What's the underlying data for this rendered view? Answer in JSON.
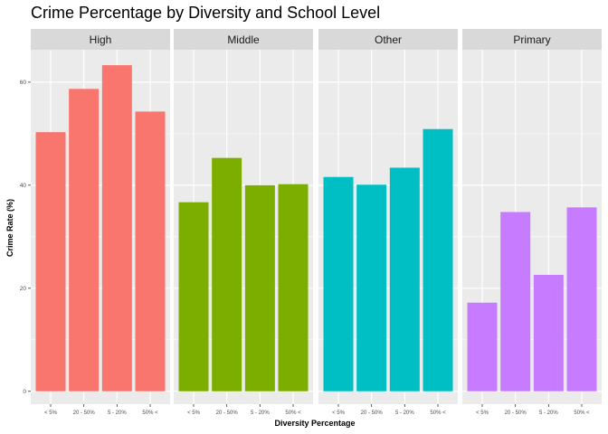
{
  "chart_data": {
    "type": "bar",
    "title": "Crime Percentage by Diversity and School Level",
    "xlabel": "Diversity Percentage",
    "ylabel": "Crime Rate (%)",
    "categories": [
      "< 5%",
      "20 - 50%",
      "5 - 20%",
      "50% <"
    ],
    "y_ticks": [
      0,
      20,
      40,
      60
    ],
    "ylim": [
      -2.5,
      66.3
    ],
    "grid": true,
    "facets": [
      {
        "name": "High",
        "color": "#F8766D",
        "values": [
          50.3,
          58.7,
          63.3,
          54.3
        ]
      },
      {
        "name": "Middle",
        "color": "#7CAE00",
        "values": [
          36.7,
          45.3,
          40.0,
          40.2
        ]
      },
      {
        "name": "Other",
        "color": "#00BFC4",
        "values": [
          41.6,
          40.1,
          43.4,
          50.9
        ]
      },
      {
        "name": "Primary",
        "color": "#C77CFF",
        "values": [
          17.2,
          34.8,
          22.6,
          35.7
        ]
      }
    ]
  }
}
